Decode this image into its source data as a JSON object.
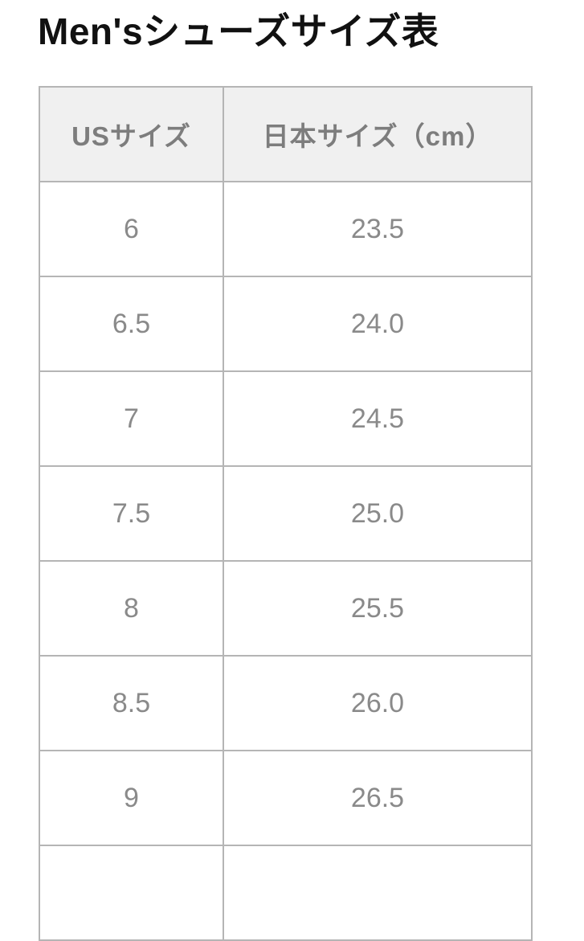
{
  "page": {
    "title": "Men'sシューズサイズ表"
  },
  "table": {
    "headers": {
      "us": "USサイズ",
      "jp": "日本サイズ（cm）"
    },
    "rows": [
      {
        "us": "6",
        "jp": "23.5"
      },
      {
        "us": "6.5",
        "jp": "24.0"
      },
      {
        "us": "7",
        "jp": "24.5"
      },
      {
        "us": "7.5",
        "jp": "25.0"
      },
      {
        "us": "8",
        "jp": "25.5"
      },
      {
        "us": "8.5",
        "jp": "26.0"
      },
      {
        "us": "9",
        "jp": "26.5"
      },
      {
        "us": "",
        "jp": ""
      }
    ]
  },
  "colors": {
    "title_text": "#111111",
    "border": "#b5b5b5",
    "header_bg": "#f0f0f0",
    "header_text": "#7d7d7d",
    "cell_text": "#8a8a8a",
    "page_bg": "#ffffff"
  }
}
